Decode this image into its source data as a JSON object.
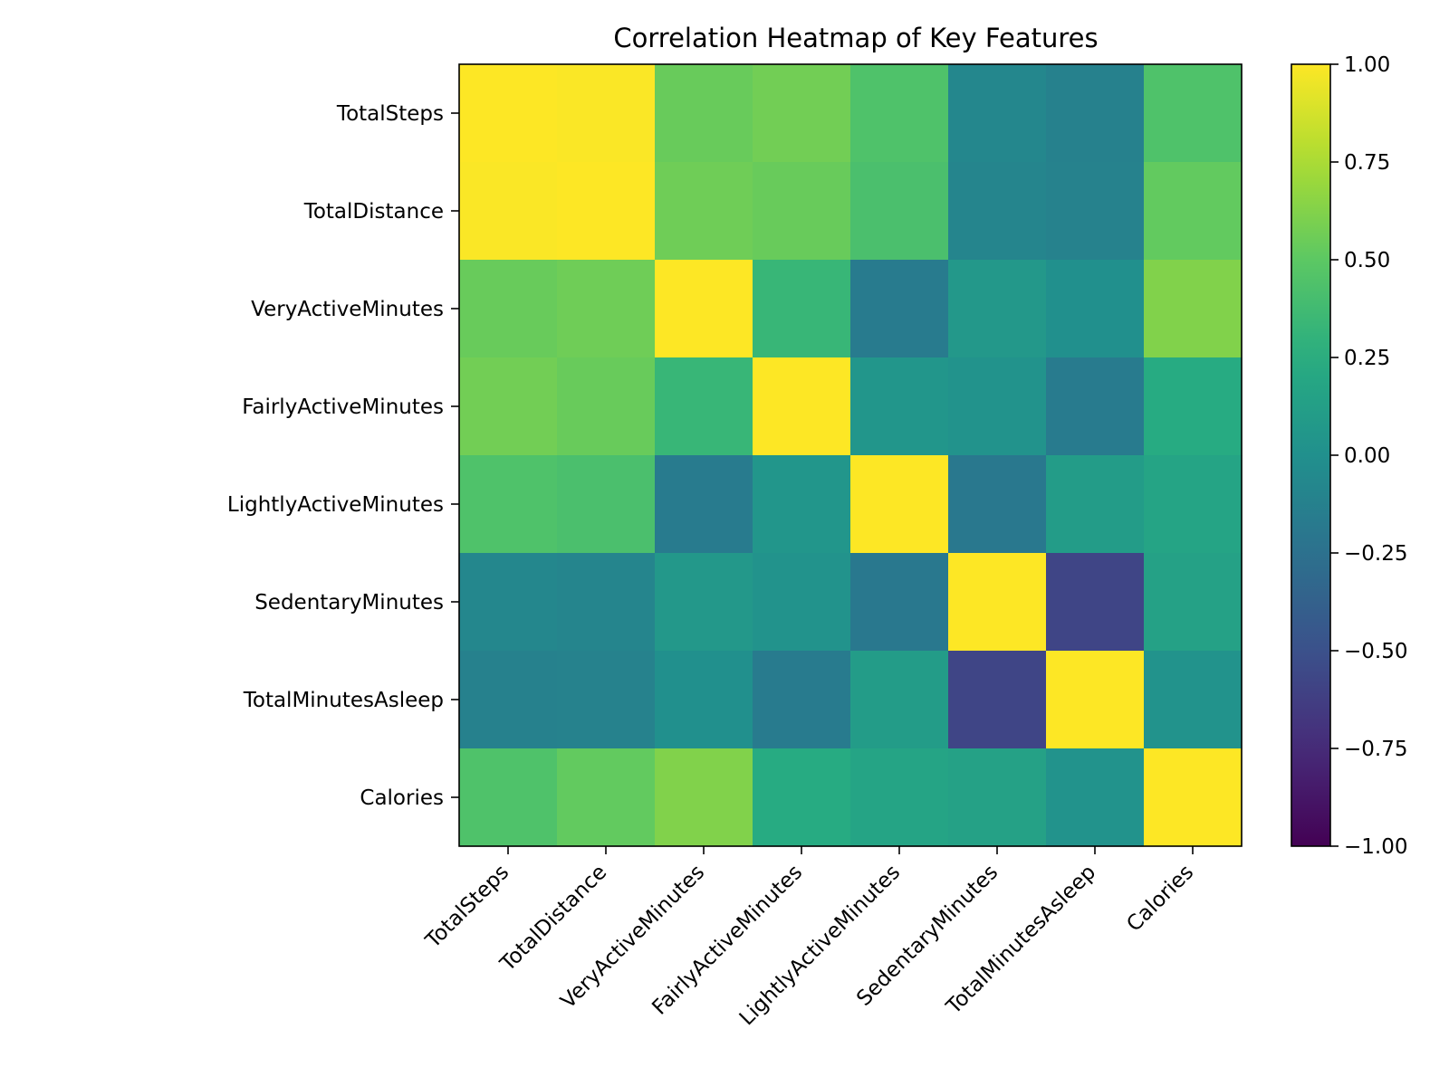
{
  "chart_data": {
    "type": "heatmap",
    "title": "Correlation Heatmap of Key Features",
    "xlabel": "",
    "ylabel": "",
    "x_categories": [
      "TotalSteps",
      "TotalDistance",
      "VeryActiveMinutes",
      "FairlyActiveMinutes",
      "LightlyActiveMinutes",
      "SedentaryMinutes",
      "TotalMinutesAsleep",
      "Calories"
    ],
    "y_categories": [
      "TotalSteps",
      "TotalDistance",
      "VeryActiveMinutes",
      "FairlyActiveMinutes",
      "LightlyActiveMinutes",
      "SedentaryMinutes",
      "TotalMinutesAsleep",
      "Calories"
    ],
    "values": [
      [
        1.0,
        0.99,
        0.54,
        0.57,
        0.44,
        -0.07,
        -0.12,
        0.44
      ],
      [
        0.99,
        1.0,
        0.56,
        0.54,
        0.42,
        -0.09,
        -0.11,
        0.52
      ],
      [
        0.54,
        0.56,
        1.0,
        0.33,
        -0.17,
        0.07,
        0.0,
        0.62
      ],
      [
        0.57,
        0.54,
        0.33,
        1.0,
        0.05,
        0.03,
        -0.17,
        0.23
      ],
      [
        0.44,
        0.42,
        -0.17,
        0.05,
        1.0,
        -0.19,
        0.1,
        0.17
      ],
      [
        -0.07,
        -0.09,
        0.07,
        0.03,
        -0.19,
        1.0,
        -0.58,
        0.15
      ],
      [
        -0.12,
        -0.11,
        0.0,
        -0.17,
        0.1,
        -0.58,
        1.0,
        0.03
      ],
      [
        0.44,
        0.52,
        0.62,
        0.23,
        0.17,
        0.15,
        0.03,
        1.0
      ]
    ],
    "colormap": "viridis",
    "vmin": -1.0,
    "vmax": 1.0,
    "colorbar": {
      "ticks": [
        1.0,
        0.75,
        0.5,
        0.25,
        0.0,
        -0.25,
        -0.5,
        -0.75,
        -1.0
      ],
      "tick_labels": [
        "1.00",
        "0.75",
        "0.50",
        "0.25",
        "0.00",
        "−0.25",
        "−0.50",
        "−0.75",
        "−1.00"
      ]
    },
    "grid": false,
    "legend": "colorbar-right"
  }
}
